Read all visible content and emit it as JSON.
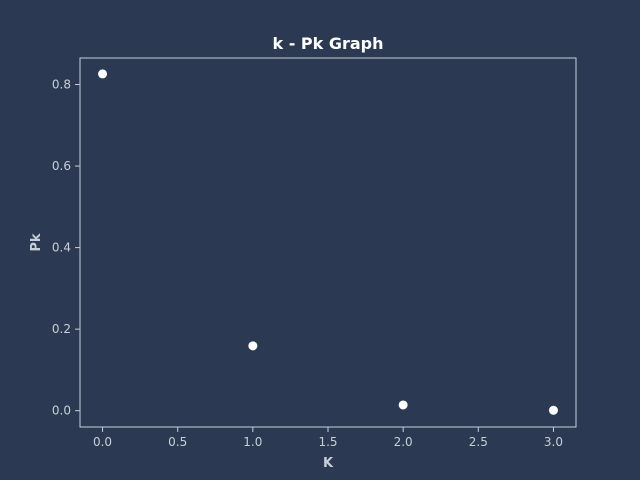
{
  "chart_data": {
    "type": "scatter",
    "title": "k - Pk Graph",
    "xlabel": "K",
    "ylabel": "Pk",
    "x": [
      0,
      1,
      2,
      3
    ],
    "y": [
      0.826,
      0.159,
      0.014,
      0.001
    ],
    "xlim": [
      -0.15,
      3.15
    ],
    "ylim": [
      -0.04,
      0.865
    ],
    "xticks": [
      "0.0",
      "0.5",
      "1.0",
      "1.5",
      "2.0",
      "2.5",
      "3.0"
    ],
    "yticks": [
      "0.0",
      "0.2",
      "0.4",
      "0.6",
      "0.8"
    ],
    "grid": false,
    "legend": "none",
    "colors": {
      "background": "#2b3a52",
      "point": "#ffffff",
      "axes": "#c9ced6",
      "text": "#c9ced6",
      "title": "#ffffff"
    }
  }
}
